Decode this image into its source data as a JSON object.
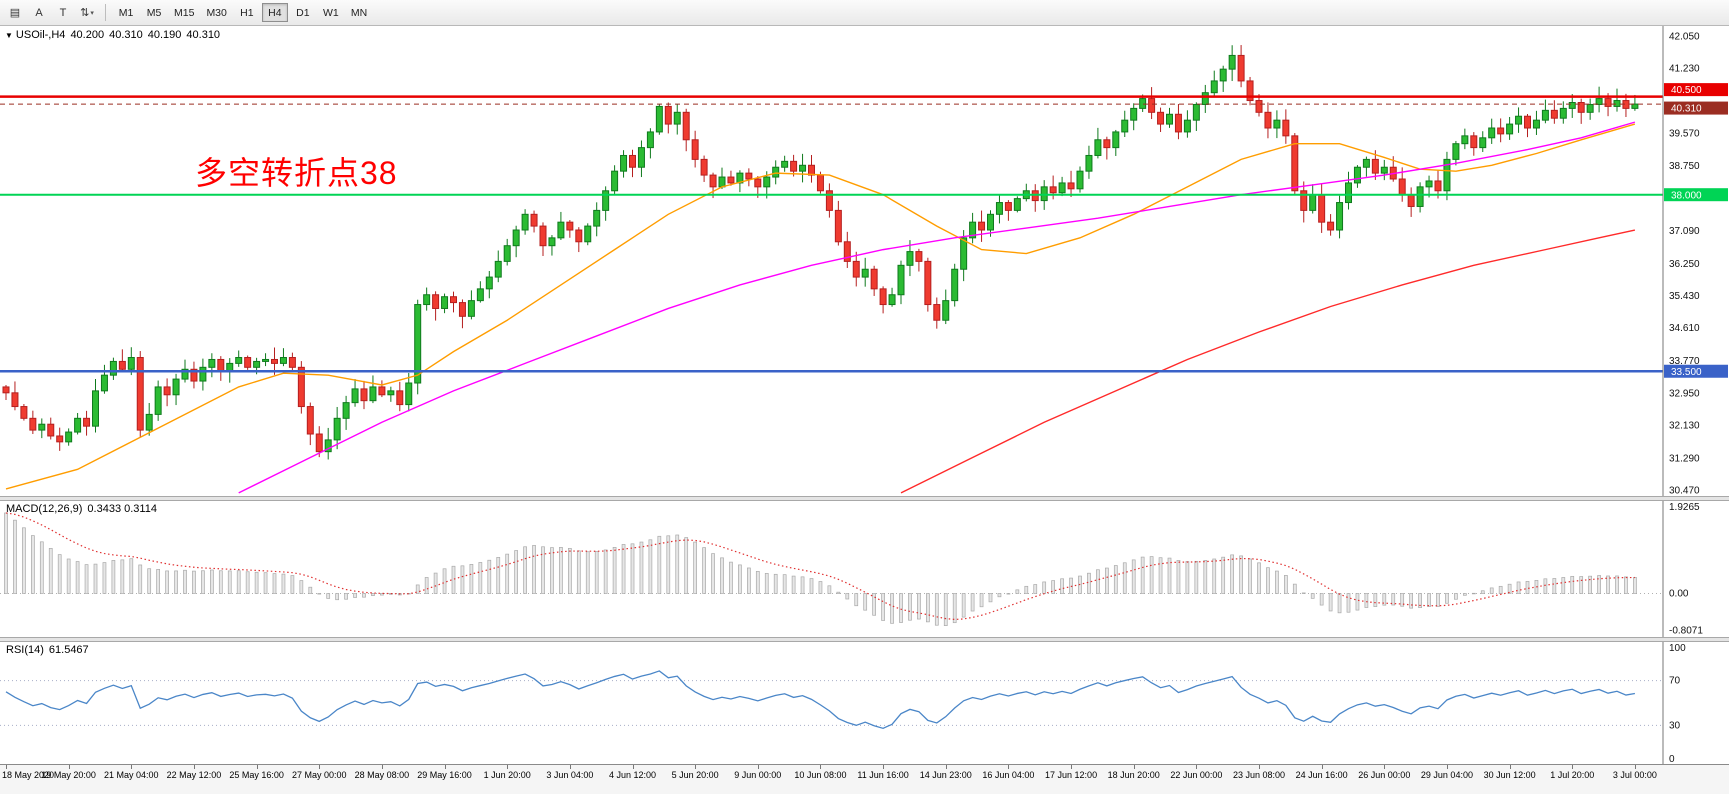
{
  "toolbar": {
    "tool_buttons": [
      {
        "name": "chart-list-icon",
        "glyph": "▤"
      },
      {
        "name": "arrow-tool-a",
        "glyph": "A"
      },
      {
        "name": "text-tool-t",
        "glyph": "T"
      },
      {
        "name": "shapes-dropdown",
        "glyph": "⇅",
        "caret": "▾"
      }
    ],
    "timeframes": [
      "M1",
      "M5",
      "M15",
      "M30",
      "H1",
      "H4",
      "D1",
      "W1",
      "MN"
    ],
    "active_timeframe": "H4"
  },
  "main_chart": {
    "header": {
      "quick_trade_arrow": "▼",
      "symbol_tf": "USOil-,H4",
      "open": "40.200",
      "high": "40.310",
      "low": "40.190",
      "close": "40.310"
    },
    "annotation": {
      "text": "多空转折点38",
      "color": "#ff0000"
    }
  },
  "chart_data": {
    "type": "candlestick",
    "title": "USOil-,H4",
    "symbol": "USOil-",
    "timeframe": "H4",
    "ylim": [
      30.32,
      42.3
    ],
    "price_ticks": [
      "42.050",
      "41.230",
      "39.570",
      "38.750",
      "37.090",
      "36.250",
      "35.430",
      "34.610",
      "33.770",
      "32.950",
      "32.130",
      "31.290",
      "30.470"
    ],
    "x_label_step": 7,
    "x_labels": [
      "18 May 2020",
      "19 May 20:00",
      "21 May 04:00",
      "22 May 12:00",
      "25 May 16:00",
      "27 May 00:00",
      "28 May 08:00",
      "29 May 16:00",
      "1 Jun 20:00",
      "3 Jun 04:00",
      "4 Jun 12:00",
      "5 Jun 20:00",
      "9 Jun 00:00",
      "10 Jun 08:00",
      "11 Jun 16:00",
      "14 Jun 23:00",
      "16 Jun 04:00",
      "17 Jun 12:00",
      "18 Jun 20:00",
      "22 Jun 00:00",
      "23 Jun 08:00",
      "24 Jun 16:00",
      "26 Jun 00:00",
      "29 Jun 04:00",
      "30 Jun 12:00",
      "1 Jul 20:00",
      "3 Jul 00:00"
    ],
    "first_open": 33.1,
    "closes": [
      32.95,
      32.6,
      32.3,
      32,
      32.15,
      31.85,
      31.7,
      31.95,
      32.3,
      32.1,
      33,
      33.4,
      33.75,
      33.55,
      33.85,
      32,
      32.4,
      33.1,
      32.9,
      33.3,
      33.55,
      33.25,
      33.6,
      33.8,
      33.5,
      33.7,
      33.85,
      33.6,
      33.75,
      33.8,
      33.7,
      33.85,
      33.6,
      32.6,
      31.9,
      31.45,
      31.75,
      32.3,
      32.7,
      33.05,
      32.75,
      33.1,
      32.9,
      33,
      32.65,
      33.2,
      35.2,
      35.45,
      35.1,
      35.4,
      35.25,
      34.9,
      35.3,
      35.6,
      35.9,
      36.3,
      36.7,
      37.1,
      37.5,
      37.2,
      36.7,
      36.9,
      37.3,
      37.1,
      36.8,
      37.2,
      37.6,
      38.1,
      38.6,
      39,
      38.7,
      39.2,
      39.6,
      40.25,
      39.8,
      40.1,
      39.4,
      38.9,
      38.5,
      38.2,
      38.45,
      38.3,
      38.55,
      38.4,
      38.2,
      38.45,
      38.7,
      38.85,
      38.6,
      38.75,
      38.5,
      38.1,
      37.6,
      36.8,
      36.3,
      35.9,
      36.1,
      35.6,
      35.2,
      35.45,
      36.2,
      36.55,
      36.3,
      35.2,
      34.8,
      35.3,
      36.1,
      36.9,
      37.3,
      37.1,
      37.5,
      37.8,
      37.6,
      37.9,
      38.1,
      37.85,
      38.2,
      38.05,
      38.3,
      38.15,
      38.6,
      39,
      39.4,
      39.2,
      39.6,
      39.9,
      40.2,
      40.45,
      40.1,
      39.8,
      40.05,
      39.6,
      39.9,
      40.3,
      40.6,
      40.9,
      41.2,
      41.55,
      40.9,
      40.4,
      40.1,
      39.7,
      39.9,
      39.5,
      38.1,
      37.6,
      38,
      37.3,
      37.1,
      37.8,
      38.3,
      38.7,
      38.9,
      38.55,
      38.7,
      38.4,
      38,
      37.7,
      38.2,
      38.35,
      38.1,
      38.9,
      39.3,
      39.5,
      39.2,
      39.45,
      39.7,
      39.55,
      39.8,
      40,
      39.7,
      39.9,
      40.15,
      39.95,
      40.2,
      40.35,
      40.1,
      40.3,
      40.45,
      40.25,
      40.4,
      40.2,
      40.31
    ],
    "up_color": "#2bbb33",
    "up_border": "#0f7a1d",
    "down_color": "#ef3b30",
    "down_border": "#b51f1f",
    "hlines": [
      {
        "price": 40.5,
        "label": "40.500",
        "color": "#e80000",
        "width": 2.4
      },
      {
        "price": 38.0,
        "label": "38.000",
        "color": "#00d455",
        "width": 2
      },
      {
        "price": 33.5,
        "label": "33.500",
        "color": "#3a62c8",
        "width": 2.4
      }
    ],
    "current_price": {
      "price": 40.31,
      "label": "40.310",
      "color": "#9b2d22"
    },
    "moving_averages": [
      {
        "name": "ma-fast-orange",
        "color": "#ff9d00",
        "points": [
          [
            0,
            30.5
          ],
          [
            8,
            31.0
          ],
          [
            14,
            31.7
          ],
          [
            20,
            32.4
          ],
          [
            26,
            33.1
          ],
          [
            31,
            33.45
          ],
          [
            36,
            33.4
          ],
          [
            42,
            33.15
          ],
          [
            46,
            33.4
          ],
          [
            50,
            34.0
          ],
          [
            56,
            34.8
          ],
          [
            62,
            35.7
          ],
          [
            68,
            36.6
          ],
          [
            74,
            37.5
          ],
          [
            80,
            38.2
          ],
          [
            86,
            38.55
          ],
          [
            92,
            38.5
          ],
          [
            98,
            38.0
          ],
          [
            104,
            37.2
          ],
          [
            109,
            36.6
          ],
          [
            114,
            36.5
          ],
          [
            120,
            36.9
          ],
          [
            126,
            37.5
          ],
          [
            132,
            38.2
          ],
          [
            138,
            38.9
          ],
          [
            144,
            39.3
          ],
          [
            149,
            39.3
          ],
          [
            154,
            38.95
          ],
          [
            158,
            38.65
          ],
          [
            162,
            38.6
          ],
          [
            166,
            38.75
          ],
          [
            171,
            39.05
          ],
          [
            176,
            39.4
          ],
          [
            182,
            39.8
          ]
        ]
      },
      {
        "name": "ma-mid-magenta",
        "color": "#ff00ff",
        "points": [
          [
            26,
            30.4
          ],
          [
            34,
            31.3
          ],
          [
            42,
            32.2
          ],
          [
            50,
            33.0
          ],
          [
            58,
            33.7
          ],
          [
            66,
            34.4
          ],
          [
            74,
            35.1
          ],
          [
            82,
            35.7
          ],
          [
            90,
            36.2
          ],
          [
            98,
            36.6
          ],
          [
            106,
            36.9
          ],
          [
            114,
            37.15
          ],
          [
            122,
            37.4
          ],
          [
            130,
            37.7
          ],
          [
            138,
            38.0
          ],
          [
            146,
            38.25
          ],
          [
            154,
            38.5
          ],
          [
            162,
            38.8
          ],
          [
            170,
            39.15
          ],
          [
            176,
            39.45
          ],
          [
            182,
            39.85
          ]
        ]
      },
      {
        "name": "ma-slow-red",
        "color": "#ff2a2a",
        "points": [
          [
            100,
            30.4
          ],
          [
            108,
            31.3
          ],
          [
            116,
            32.2
          ],
          [
            124,
            33.0
          ],
          [
            132,
            33.8
          ],
          [
            140,
            34.5
          ],
          [
            148,
            35.15
          ],
          [
            156,
            35.7
          ],
          [
            164,
            36.2
          ],
          [
            172,
            36.6
          ],
          [
            178,
            36.9
          ],
          [
            182,
            37.1
          ]
        ]
      }
    ],
    "indicators": [
      {
        "id": "macd",
        "label": "MACD(12,26,9)",
        "values_display": "0.3433 0.3114",
        "values": [
          0.3433,
          0.3114
        ],
        "params": {
          "fast": 12,
          "slow": 26,
          "signal": 9
        },
        "axis_labels": [
          "1.9265",
          "0.00",
          "-0.8071"
        ],
        "axis_values": [
          1.9265,
          0,
          -0.8071
        ],
        "ylim": [
          -0.95,
          2.02
        ]
      },
      {
        "id": "rsi",
        "label": "RSI(14)",
        "value_display": "61.5467",
        "value": 61.5467,
        "period": 14,
        "levels": [
          70,
          30
        ],
        "axis_labels": [
          "100",
          "70",
          "30",
          "0"
        ],
        "axis_values": [
          100,
          70,
          30,
          0
        ],
        "ylim": [
          0,
          100
        ]
      }
    ]
  }
}
